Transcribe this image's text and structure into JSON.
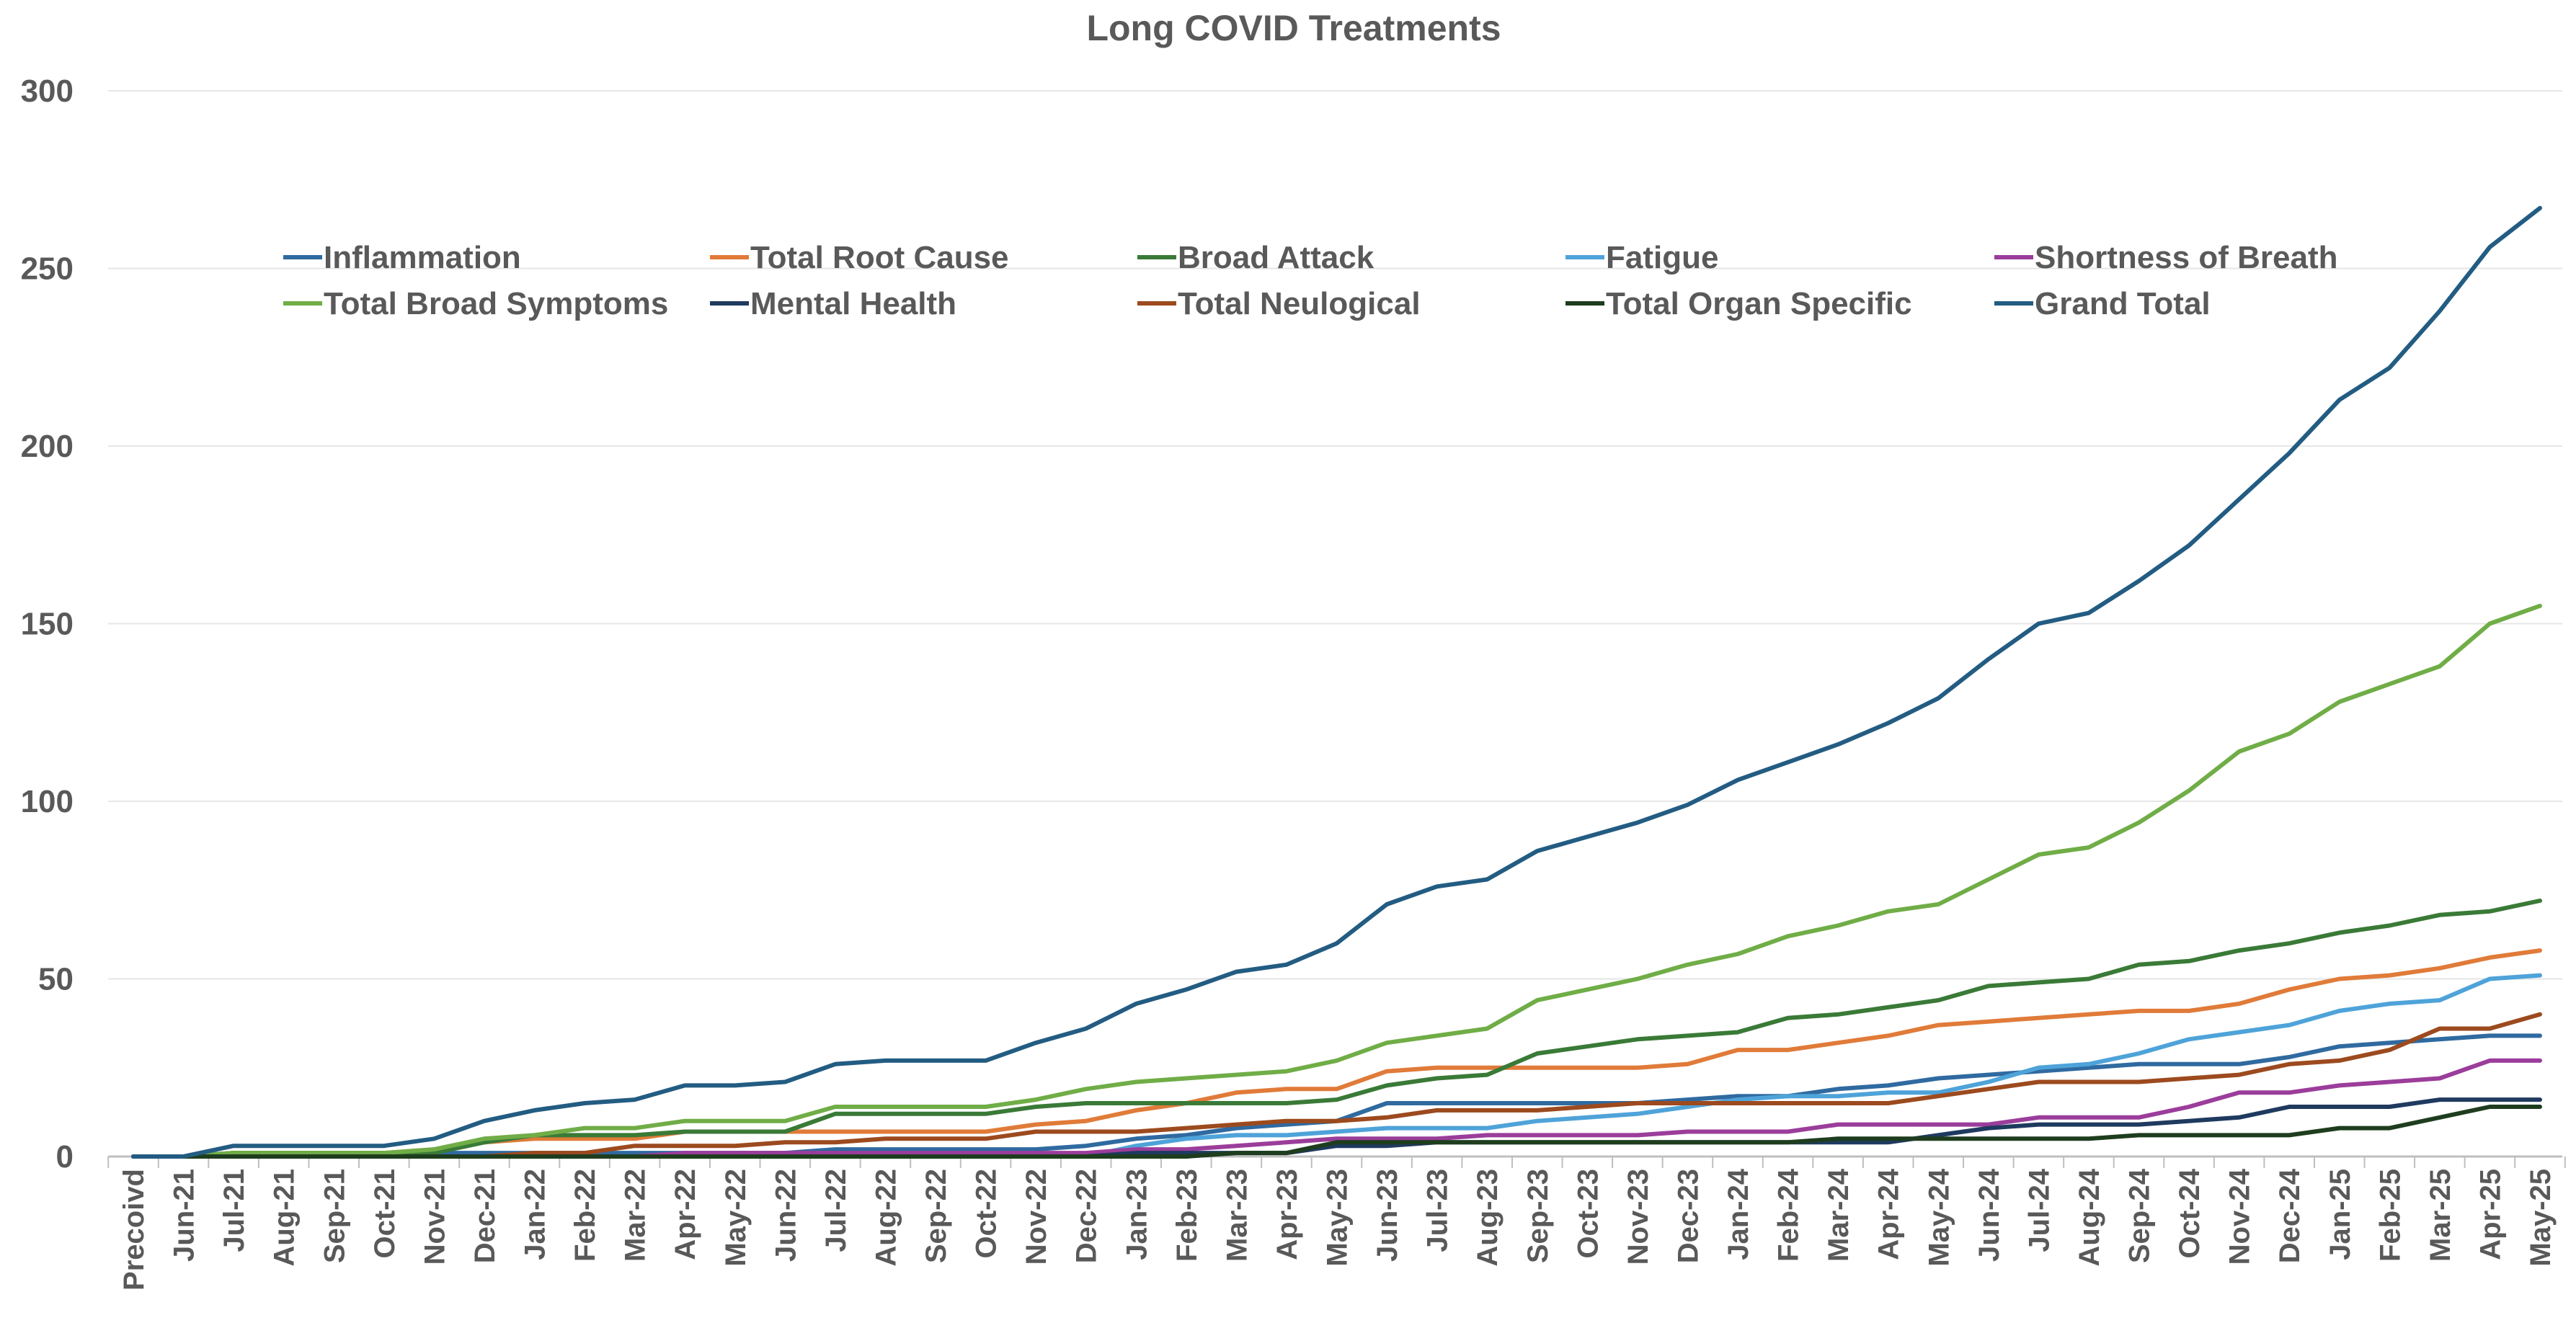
{
  "chart_data": {
    "type": "line",
    "title": "Long COVID Treatments",
    "xlabel": "",
    "ylabel": "",
    "ylim": [
      0,
      300
    ],
    "yticks": [
      "0",
      "50",
      "100",
      "150",
      "200",
      "250",
      "300"
    ],
    "grid": "horizontal",
    "legend_position": "top (inside plot area)",
    "categories": [
      "Precoivd",
      "Jun-21",
      "Jul-21",
      "Aug-21",
      "Sep-21",
      "Oct-21",
      "Nov-21",
      "Dec-21",
      "Jan-22",
      "Feb-22",
      "Mar-22",
      "Apr-22",
      "May-22",
      "Jun-22",
      "Jul-22",
      "Aug-22",
      "Sep-22",
      "Oct-22",
      "Nov-22",
      "Dec-22",
      "Jan-23",
      "Feb-23",
      "Mar-23",
      "Apr-23",
      "May-23",
      "Jun-23",
      "Jul-23",
      "Aug-23",
      "Sep-23",
      "Oct-23",
      "Nov-23",
      "Dec-23",
      "Jan-24",
      "Feb-24",
      "Mar-24",
      "Apr-24",
      "May-24",
      "Jun-24",
      "Jul-24",
      "Aug-24",
      "Sep-24",
      "Oct-24",
      "Nov-24",
      "Dec-24",
      "Jan-25",
      "Feb-25",
      "Mar-25",
      "Apr-25",
      "May-25"
    ],
    "series": [
      {
        "name": "Inflammation",
        "color": "#2f6aa0",
        "values": [
          0,
          0,
          1,
          1,
          1,
          1,
          1,
          1,
          1,
          1,
          1,
          1,
          1,
          1,
          2,
          2,
          2,
          2,
          2,
          3,
          5,
          6,
          8,
          9,
          10,
          15,
          15,
          15,
          15,
          15,
          15,
          16,
          17,
          17,
          19,
          20,
          22,
          23,
          24,
          25,
          26,
          26,
          26,
          28,
          31,
          32,
          33,
          34,
          34
        ]
      },
      {
        "name": "Total Root Cause",
        "color": "#e07b39",
        "values": [
          0,
          0,
          1,
          1,
          1,
          1,
          2,
          4,
          5,
          5,
          5,
          7,
          7,
          7,
          7,
          7,
          7,
          7,
          9,
          10,
          13,
          15,
          18,
          19,
          19,
          24,
          25,
          25,
          25,
          25,
          25,
          26,
          30,
          30,
          32,
          34,
          37,
          38,
          39,
          40,
          41,
          41,
          43,
          47,
          50,
          51,
          53,
          56,
          58
        ]
      },
      {
        "name": "Broad Attack",
        "color": "#3a7a37",
        "values": [
          0,
          0,
          1,
          1,
          1,
          1,
          1,
          4,
          6,
          6,
          6,
          7,
          7,
          7,
          12,
          12,
          12,
          12,
          14,
          15,
          15,
          15,
          15,
          15,
          16,
          20,
          22,
          23,
          29,
          31,
          33,
          34,
          35,
          39,
          40,
          42,
          44,
          48,
          49,
          50,
          54,
          55,
          58,
          60,
          63,
          65,
          68,
          69,
          72
        ]
      },
      {
        "name": "Fatigue",
        "color": "#4ea3d9",
        "values": [
          0,
          0,
          0,
          0,
          0,
          0,
          0,
          0,
          0,
          0,
          0,
          0,
          0,
          0,
          0,
          0,
          0,
          0,
          0,
          0,
          3,
          5,
          6,
          6,
          7,
          8,
          8,
          8,
          10,
          11,
          12,
          14,
          16,
          17,
          17,
          18,
          18,
          21,
          25,
          26,
          29,
          33,
          35,
          37,
          41,
          43,
          44,
          50,
          51
        ]
      },
      {
        "name": "Shortness of Breath",
        "color": "#9b3d9b",
        "values": [
          0,
          0,
          0,
          0,
          0,
          0,
          0,
          0,
          0,
          0,
          0,
          1,
          1,
          1,
          1,
          1,
          1,
          1,
          1,
          1,
          2,
          2,
          3,
          4,
          5,
          5,
          5,
          6,
          6,
          6,
          6,
          7,
          7,
          7,
          9,
          9,
          9,
          9,
          11,
          11,
          11,
          14,
          18,
          18,
          20,
          21,
          22,
          27,
          27
        ]
      },
      {
        "name": "Total Broad Symptoms",
        "color": "#70ad47",
        "values": [
          0,
          0,
          1,
          1,
          1,
          1,
          2,
          5,
          6,
          8,
          8,
          10,
          10,
          10,
          14,
          14,
          14,
          14,
          16,
          19,
          21,
          22,
          23,
          24,
          27,
          32,
          34,
          36,
          44,
          47,
          50,
          54,
          57,
          62,
          65,
          69,
          71,
          78,
          85,
          87,
          94,
          103,
          114,
          119,
          128,
          133,
          138,
          150,
          155
        ]
      },
      {
        "name": "Mental Health",
        "color": "#1f3a5f",
        "values": [
          0,
          0,
          0,
          0,
          0,
          0,
          0,
          0,
          0,
          0,
          0,
          0,
          0,
          0,
          0,
          0,
          0,
          0,
          0,
          0,
          1,
          1,
          1,
          1,
          3,
          3,
          4,
          4,
          4,
          4,
          4,
          4,
          4,
          4,
          4,
          4,
          6,
          8,
          9,
          9,
          9,
          10,
          11,
          14,
          14,
          14,
          16,
          16,
          16
        ]
      },
      {
        "name": "Total Neulogical",
        "color": "#9c4a1e",
        "values": [
          0,
          0,
          0,
          0,
          0,
          0,
          0,
          0,
          1,
          1,
          3,
          3,
          3,
          4,
          4,
          5,
          5,
          5,
          7,
          7,
          7,
          8,
          9,
          10,
          10,
          11,
          13,
          13,
          13,
          14,
          15,
          15,
          15,
          15,
          15,
          15,
          17,
          19,
          21,
          21,
          21,
          22,
          23,
          26,
          27,
          30,
          36,
          36,
          40
        ]
      },
      {
        "name": "Total Organ Specific",
        "color": "#1e3d1e",
        "values": [
          0,
          0,
          0,
          0,
          0,
          0,
          0,
          0,
          0,
          0,
          0,
          0,
          0,
          0,
          0,
          0,
          0,
          0,
          0,
          0,
          0,
          0,
          1,
          1,
          4,
          4,
          4,
          4,
          4,
          4,
          4,
          4,
          4,
          4,
          5,
          5,
          5,
          5,
          5,
          5,
          6,
          6,
          6,
          6,
          8,
          8,
          11,
          14,
          14
        ]
      },
      {
        "name": "Grand Total",
        "color": "#235c82",
        "values": [
          0,
          0,
          3,
          3,
          3,
          3,
          5,
          10,
          13,
          15,
          16,
          20,
          20,
          21,
          26,
          27,
          27,
          27,
          32,
          36,
          43,
          47,
          52,
          54,
          60,
          71,
          76,
          78,
          86,
          90,
          94,
          99,
          106,
          111,
          116,
          122,
          129,
          140,
          150,
          153,
          162,
          172,
          185,
          198,
          213,
          222,
          238,
          256,
          267
        ]
      }
    ]
  }
}
